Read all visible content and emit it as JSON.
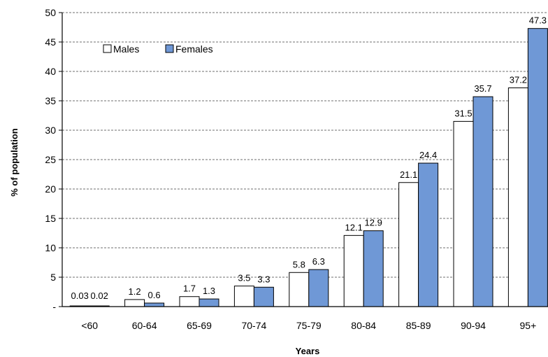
{
  "chart_data": {
    "type": "bar",
    "xlabel": "Years",
    "ylabel": "% of population",
    "ylim": [
      0,
      50
    ],
    "yticks": [
      0,
      5,
      10,
      15,
      20,
      25,
      30,
      35,
      40,
      45,
      50
    ],
    "ytick_labels": [
      "-",
      "5",
      "10",
      "15",
      "20",
      "25",
      "30",
      "35",
      "40",
      "45",
      "50"
    ],
    "grid": "horizontal dashed",
    "legend_position": "top-left",
    "categories": [
      "<60",
      "60-64",
      "65-69",
      "70-74",
      "75-79",
      "80-84",
      "85-89",
      "90-94",
      "95+"
    ],
    "series": [
      {
        "name": "Males",
        "color": "#ffffff",
        "values": [
          0.03,
          1.2,
          1.7,
          3.5,
          5.8,
          12.1,
          21.1,
          31.5,
          37.2
        ],
        "labels": [
          "0.03",
          "1.2",
          "1.7",
          "3.5",
          "5.8",
          "12.1",
          "21.1",
          "31.5",
          "37.2"
        ]
      },
      {
        "name": "Females",
        "color": "#6f98d6",
        "values": [
          0.02,
          0.6,
          1.3,
          3.3,
          6.3,
          12.9,
          24.4,
          35.7,
          47.3
        ],
        "labels": [
          "0.02",
          "0.6",
          "1.3",
          "3.3",
          "6.3",
          "12.9",
          "24.4",
          "35.7",
          "47.3"
        ]
      }
    ]
  }
}
